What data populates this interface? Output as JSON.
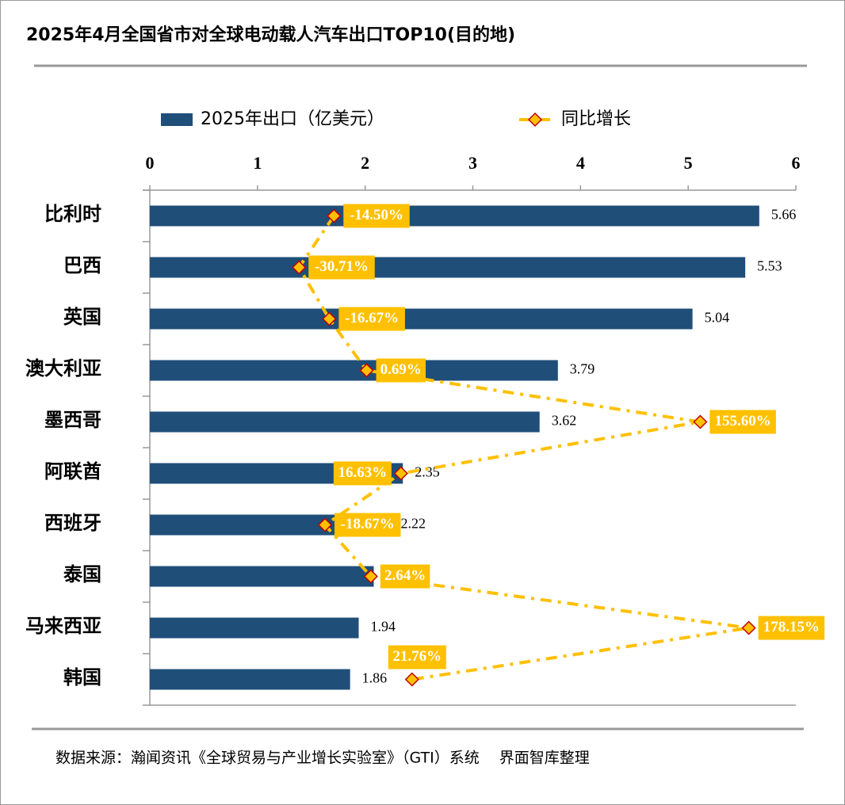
{
  "chart_data": {
    "type": "bar",
    "title": "2025年4月全国省市对全球电动载人汽车出口TOP10(目的地)",
    "categories": [
      "比利时",
      "巴西",
      "英国",
      "澳大利亚",
      "墨西哥",
      "阿联酋",
      "西班牙",
      "泰国",
      "马来西亚",
      "韩国"
    ],
    "series": [
      {
        "name": "2025年出口（亿美元）",
        "color": "#1f4e79",
        "values": [
          5.66,
          5.53,
          5.04,
          3.79,
          3.62,
          2.35,
          2.22,
          2.08,
          1.94,
          1.86
        ]
      },
      {
        "name": "同比增长",
        "color": "#ffc000",
        "marker_edge": "#c00000",
        "axis": "x2",
        "values": [
          -14.5,
          -30.71,
          -16.67,
          0.69,
          155.6,
          16.63,
          -18.67,
          2.64,
          178.15,
          21.76
        ],
        "value_labels": [
          "-14.50%",
          "-30.71%",
          "-16.67%",
          "0.69%",
          "155.60%",
          "16.63%",
          "-18.67%",
          "2.64%",
          "178.15%",
          "21.76%"
        ]
      }
    ],
    "xlim": [
      0,
      6
    ],
    "xticks": [
      0,
      1,
      2,
      3,
      4,
      5,
      6
    ],
    "x2lim": [
      -100,
      200
    ],
    "source": "数据来源：瀚闻资讯《全球贸易与产业增长实验室》（GTI）系统　 界面智库整理"
  }
}
